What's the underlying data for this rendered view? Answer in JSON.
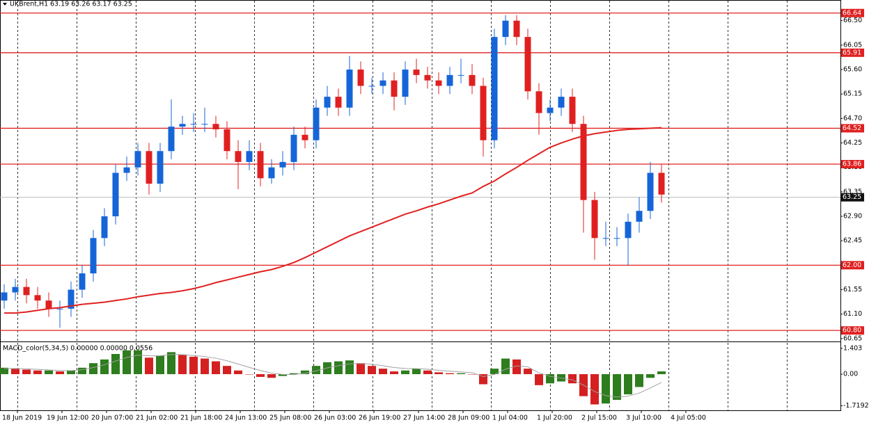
{
  "chart_data": [
    {
      "type": "candlestick",
      "title": "UKBrent,H1",
      "ohlc_text": "63.19 63.26 63.17 63.25",
      "open": [
        61.35,
        61.5,
        61.6,
        61.45,
        61.35,
        61.2,
        61.2,
        61.55,
        61.85,
        62.5,
        62.9,
        63.7,
        63.8,
        64.1,
        63.5,
        64.1,
        64.55,
        64.6,
        64.6,
        64.6,
        64.5,
        64.1,
        63.9,
        64.1,
        63.6,
        63.8,
        63.9,
        64.4,
        64.3,
        64.9,
        65.1,
        64.9,
        65.6,
        65.3,
        65.3,
        65.4,
        65.1,
        65.6,
        65.5,
        65.4,
        65.3,
        65.5,
        65.5,
        65.3,
        64.3,
        66.2,
        66.5,
        66.2,
        65.2,
        64.8,
        64.9,
        65.1,
        64.6,
        63.2,
        62.5,
        62.5,
        62.5,
        62.8,
        63.0,
        63.7
      ],
      "high": [
        61.65,
        61.75,
        61.75,
        61.6,
        61.5,
        61.35,
        61.7,
        62.0,
        62.65,
        63.05,
        63.85,
        64.0,
        64.25,
        64.25,
        64.25,
        65.05,
        64.75,
        64.8,
        64.9,
        64.75,
        64.65,
        64.3,
        64.3,
        64.25,
        63.95,
        64.1,
        64.55,
        64.55,
        65.05,
        65.3,
        65.25,
        65.85,
        65.75,
        65.45,
        65.55,
        65.55,
        65.75,
        65.8,
        65.65,
        65.55,
        65.65,
        65.8,
        65.7,
        65.45,
        66.35,
        66.6,
        66.6,
        66.35,
        65.35,
        65.05,
        65.25,
        65.25,
        64.75,
        63.35,
        62.8,
        62.7,
        62.95,
        63.25,
        63.9,
        63.85
      ],
      "low": [
        61.2,
        61.35,
        61.3,
        61.2,
        61.05,
        60.85,
        61.05,
        61.4,
        61.7,
        62.35,
        62.75,
        63.55,
        63.65,
        63.3,
        63.35,
        63.95,
        64.4,
        64.45,
        64.45,
        64.35,
        63.95,
        63.4,
        63.75,
        63.45,
        63.5,
        63.65,
        63.75,
        64.15,
        64.15,
        64.75,
        64.75,
        64.75,
        65.15,
        65.15,
        65.15,
        64.85,
        64.95,
        65.35,
        65.25,
        65.15,
        65.15,
        65.35,
        65.15,
        64.0,
        64.15,
        66.05,
        66.05,
        65.05,
        64.4,
        64.65,
        64.75,
        64.45,
        62.6,
        62.1,
        62.35,
        62.35,
        62.0,
        62.6,
        62.85,
        63.15
      ],
      "close": [
        61.5,
        61.6,
        61.45,
        61.35,
        61.2,
        61.2,
        61.55,
        61.85,
        62.5,
        62.9,
        63.7,
        63.8,
        64.1,
        63.5,
        64.1,
        64.55,
        64.6,
        64.6,
        64.6,
        64.5,
        64.1,
        63.9,
        64.1,
        63.6,
        63.8,
        63.9,
        64.4,
        64.3,
        64.9,
        65.1,
        64.9,
        65.6,
        65.3,
        65.3,
        65.4,
        65.1,
        65.6,
        65.5,
        65.4,
        65.3,
        65.5,
        65.5,
        65.3,
        64.3,
        66.2,
        66.5,
        66.2,
        65.2,
        64.8,
        64.9,
        65.1,
        64.6,
        63.2,
        62.5,
        62.5,
        62.5,
        62.8,
        63.0,
        63.7,
        63.3
      ],
      "up_color": "#1565d8",
      "down_color": "#e02020",
      "ma": {
        "color": "#e02020",
        "values": [
          61.12,
          61.12,
          61.14,
          61.17,
          61.2,
          61.22,
          61.25,
          61.28,
          61.3,
          61.32,
          61.35,
          61.38,
          61.42,
          61.45,
          61.48,
          61.5,
          61.53,
          61.57,
          61.62,
          61.68,
          61.73,
          61.78,
          61.83,
          61.88,
          61.92,
          61.98,
          62.05,
          62.14,
          62.24,
          62.34,
          62.44,
          62.54,
          62.62,
          62.7,
          62.78,
          62.86,
          62.94,
          63.0,
          63.07,
          63.13,
          63.2,
          63.27,
          63.33,
          63.45,
          63.55,
          63.68,
          63.8,
          63.93,
          64.05,
          64.17,
          64.25,
          64.32,
          64.38,
          64.42,
          64.45,
          64.48,
          64.5,
          64.51,
          64.52,
          64.53
        ]
      },
      "levels": [
        66.64,
        65.91,
        64.52,
        63.86,
        {
          "value": 62.0,
          "label": "62.00"
        },
        {
          "value": 60.8,
          "label": "60.80"
        }
      ],
      "level_color": "#e02020",
      "last_price": 63.25,
      "ylim": [
        60.61,
        66.88
      ],
      "yticks": [
        {
          "value": 66.5,
          "label": "66.50"
        },
        66.05,
        {
          "value": 65.6,
          "label": "65.60"
        },
        65.15,
        {
          "value": 64.7,
          "label": "64.70"
        },
        64.25,
        {
          "value": 63.8,
          "label": "63.80"
        },
        63.35,
        {
          "value": 62.9,
          "label": "62.90"
        },
        62.45,
        61.55,
        {
          "value": 61.1,
          "label": "61.10"
        },
        60.65
      ],
      "x_labels": [
        "18 Jun 2019",
        "19 Jun 12:00",
        "20 Jun 07:00",
        "21 Jun 02:00",
        "21 Jun 18:00",
        "24 Jun 13:00",
        "25 Jun 08:00",
        "26 Jun 03:00",
        "26 Jun 19:00",
        "27 Jun 14:00",
        "28 Jun 09:00",
        "1 Jul 04:00",
        "1 Jul 20:00",
        "2 Jul 15:00",
        "3 Jul 10:00",
        "4 Jul 05:00"
      ],
      "grid": true
    },
    {
      "type": "macd",
      "title": "MACD_color(5,34,5) 0.00000 0.00000 0.0556",
      "values": [
        0.35,
        0.3,
        0.25,
        0.2,
        0.2,
        0.15,
        0.2,
        0.35,
        0.6,
        0.8,
        1.1,
        1.3,
        1.3,
        0.9,
        1.0,
        1.2,
        1.05,
        0.95,
        0.85,
        0.7,
        0.45,
        0.2,
        0.0,
        -0.15,
        -0.2,
        -0.1,
        0.05,
        0.2,
        0.45,
        0.65,
        0.7,
        0.75,
        0.6,
        0.45,
        0.3,
        0.15,
        0.2,
        0.3,
        0.2,
        0.1,
        0.05,
        0.05,
        0.0,
        -0.55,
        0.3,
        0.85,
        0.8,
        0.3,
        -0.6,
        -0.5,
        -0.4,
        -0.5,
        -1.2,
        -1.65,
        -1.6,
        -1.4,
        -1.1,
        -0.7,
        -0.2,
        0.15
      ],
      "signal": [
        0.3,
        0.31,
        0.29,
        0.26,
        0.23,
        0.2,
        0.19,
        0.24,
        0.36,
        0.51,
        0.71,
        0.91,
        1.04,
        1.0,
        1.0,
        1.07,
        1.06,
        1.02,
        0.96,
        0.87,
        0.73,
        0.55,
        0.37,
        0.2,
        0.06,
        -0.02,
        -0.02,
        0.05,
        0.18,
        0.34,
        0.46,
        0.56,
        0.58,
        0.54,
        0.46,
        0.36,
        0.31,
        0.3,
        0.27,
        0.21,
        0.16,
        0.12,
        0.08,
        -0.13,
        -0.02,
        0.27,
        0.45,
        0.4,
        0.07,
        -0.12,
        -0.21,
        -0.31,
        -0.6,
        -0.95,
        -1.17,
        -1.25,
        -1.2,
        -1.03,
        -0.75,
        -0.45
      ],
      "up_color": "#2e7d1e",
      "down_color": "#d42020",
      "signal_color": "#a0a0a0",
      "ylim": [
        -1.97,
        1.706
      ],
      "yticks": [
        1.403,
        {
          "value": 0,
          "label": "0.00"
        },
        -1.71923
      ]
    }
  ]
}
